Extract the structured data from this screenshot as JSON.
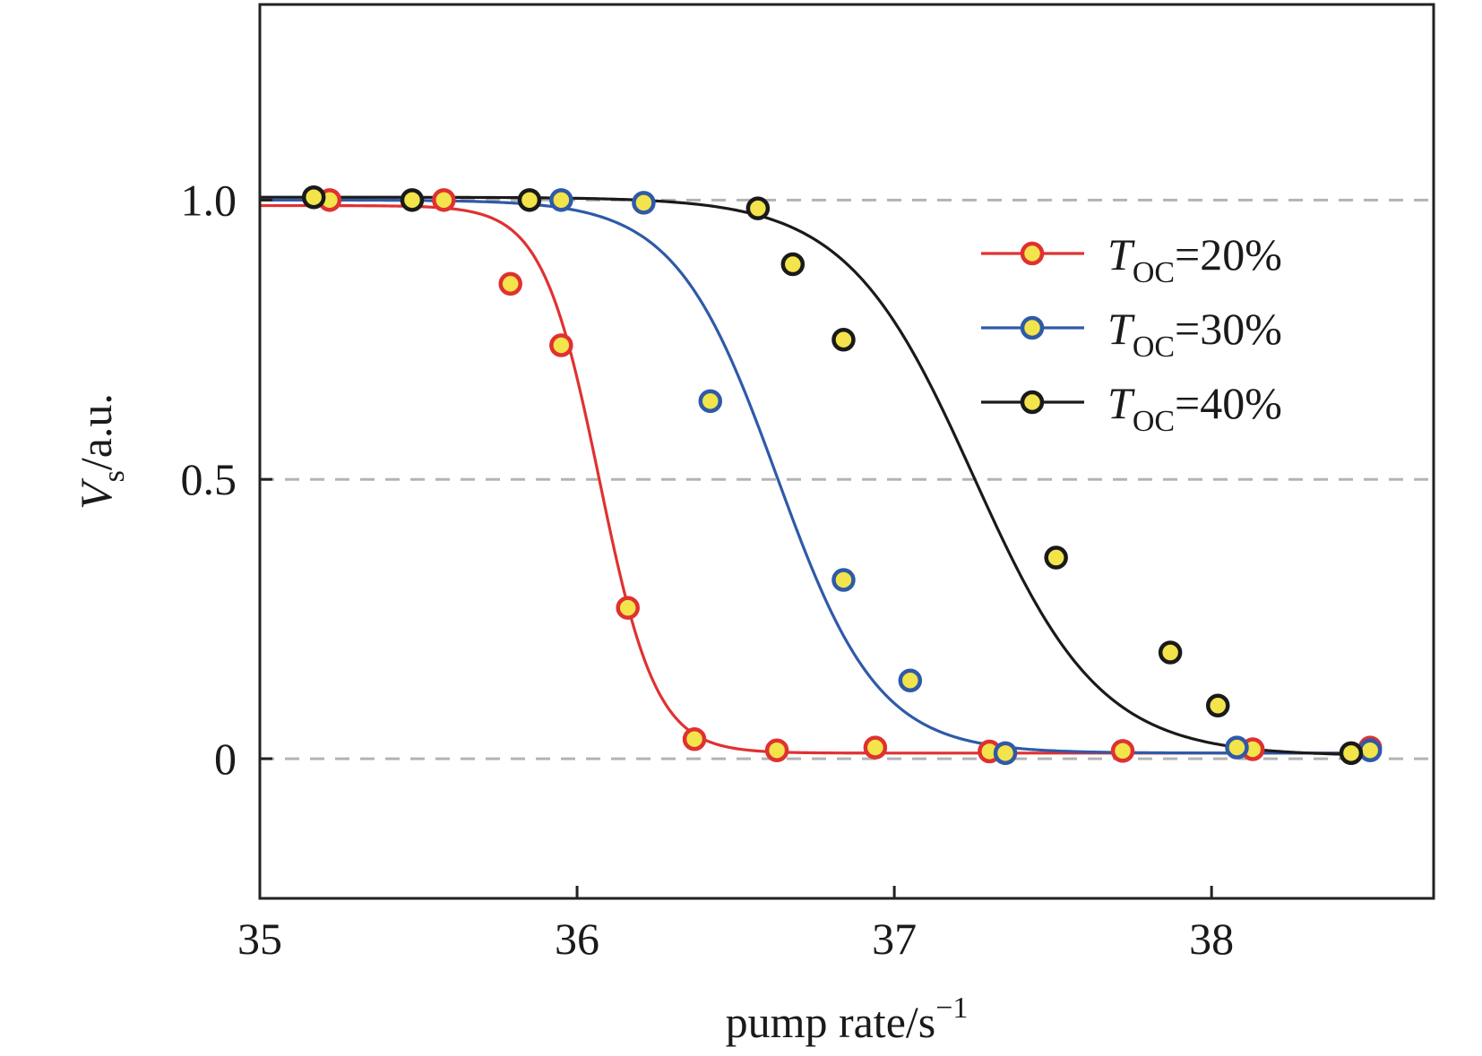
{
  "chart_data": {
    "type": "line",
    "xlabel": {
      "text": "pump rate/s",
      "sup": "−1"
    },
    "ylabel": {
      "main": "V",
      "sub": "s",
      "rest": "/a.u."
    },
    "xlim": [
      35,
      38.7
    ],
    "ylim": [
      -0.25,
      1.35
    ],
    "x_ticks": [
      {
        "value": 35,
        "label": "35"
      },
      {
        "value": 36,
        "label": "36"
      },
      {
        "value": 37,
        "label": "37"
      },
      {
        "value": 38,
        "label": "38"
      }
    ],
    "y_ticks": [
      {
        "value": 0,
        "label": "0"
      },
      {
        "value": 0.5,
        "label": "0.5"
      },
      {
        "value": 1.0,
        "label": "1.0"
      }
    ],
    "grid": {
      "horizontal_dashed_at": [
        0,
        0.5,
        1.0
      ]
    },
    "legend_position": "top-right",
    "marker_fill": "#f2e44a",
    "series": [
      {
        "name": {
          "main": "T",
          "sub": "OC",
          "rest": "=20%"
        },
        "color": "#e03131",
        "fit": {
          "x0": 36.07,
          "k": 0.09,
          "top": 0.99,
          "bottom": 0.01
        },
        "points": [
          [
            35.22,
            1.0
          ],
          [
            35.58,
            1.0
          ],
          [
            35.79,
            0.85
          ],
          [
            35.95,
            0.74
          ],
          [
            36.16,
            0.27
          ],
          [
            36.37,
            0.035
          ],
          [
            36.63,
            0.015
          ],
          [
            36.94,
            0.02
          ],
          [
            37.3,
            0.013
          ],
          [
            37.72,
            0.014
          ],
          [
            38.13,
            0.017
          ],
          [
            38.5,
            0.02
          ]
        ]
      },
      {
        "name": {
          "main": "T",
          "sub": "OC",
          "rest": "=30%"
        },
        "color": "#2f5aa8",
        "fit": {
          "x0": 36.63,
          "k": 0.16,
          "top": 1.0,
          "bottom": 0.01
        },
        "points": [
          [
            35.95,
            1.0
          ],
          [
            36.21,
            0.995
          ],
          [
            36.42,
            0.64
          ],
          [
            36.84,
            0.32
          ],
          [
            37.05,
            0.14
          ],
          [
            37.35,
            0.01
          ],
          [
            38.08,
            0.02
          ],
          [
            38.5,
            0.015
          ]
        ]
      },
      {
        "name": {
          "main": "T",
          "sub": "OC",
          "rest": "=40%"
        },
        "color": "#1a1a1a",
        "fit": {
          "x0": 37.25,
          "k": 0.2,
          "top": 1.005,
          "bottom": 0.005
        },
        "points": [
          [
            35.17,
            1.005
          ],
          [
            35.48,
            1.0
          ],
          [
            35.85,
            1.0
          ],
          [
            36.57,
            0.985
          ],
          [
            36.68,
            0.885
          ],
          [
            36.84,
            0.75
          ],
          [
            37.51,
            0.36
          ],
          [
            37.87,
            0.19
          ],
          [
            38.02,
            0.095
          ],
          [
            38.44,
            0.01
          ]
        ]
      }
    ]
  }
}
